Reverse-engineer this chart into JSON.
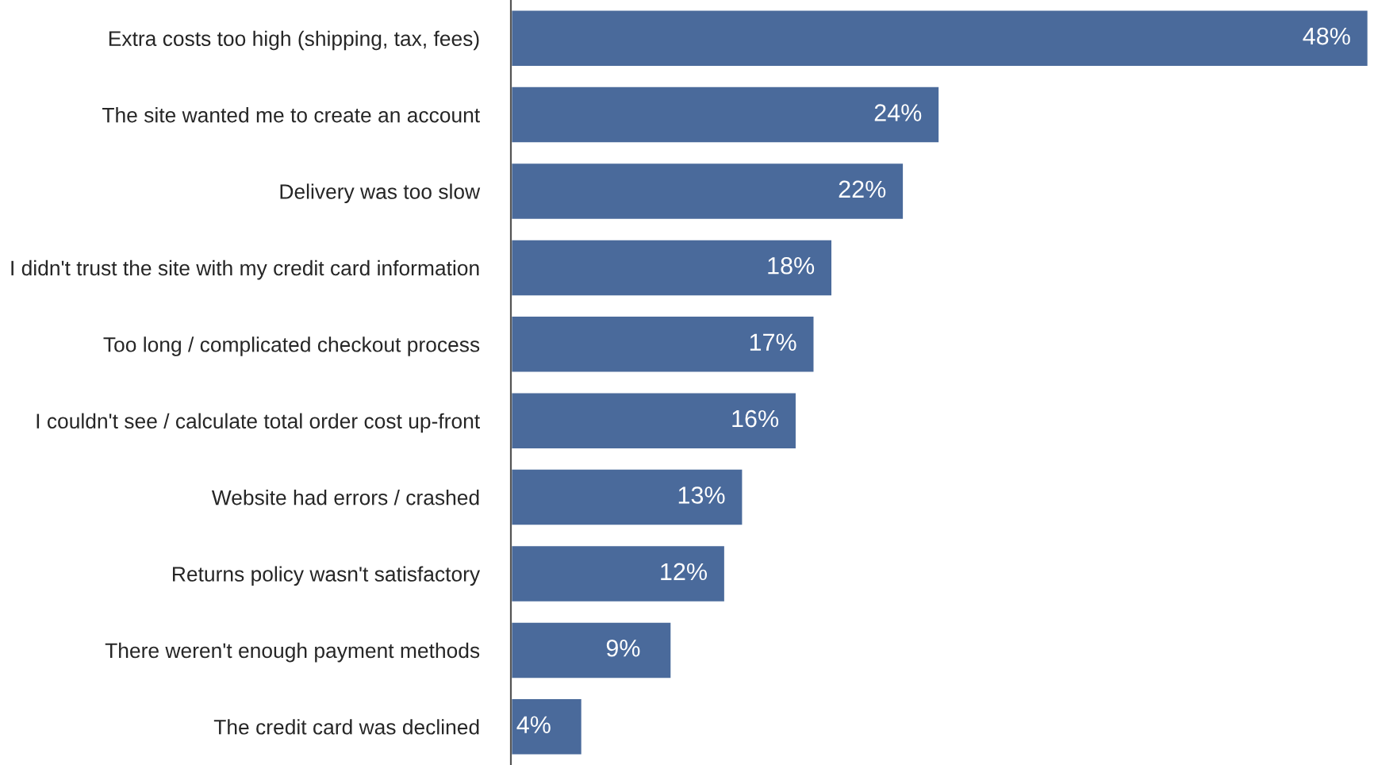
{
  "chart_data": {
    "type": "bar",
    "orientation": "horizontal",
    "categories": [
      "Extra costs too high (shipping, tax, fees)",
      "The site wanted me to create an account",
      "Delivery was too slow",
      "I didn't trust the site with my credit card information",
      "Too long / complicated checkout process",
      "I couldn't see / calculate total order cost up-front",
      "Website had errors / crashed",
      "Returns policy wasn't satisfactory",
      "There weren't enough payment methods",
      "The credit card was declined"
    ],
    "values": [
      48,
      24,
      22,
      18,
      17,
      16,
      13,
      12,
      9,
      4
    ],
    "value_labels": [
      "48%",
      "24%",
      "22%",
      "18%",
      "17%",
      "16%",
      "13%",
      "12%",
      "9%",
      "4%"
    ],
    "color": "#4a6a9b",
    "grid": false
  }
}
